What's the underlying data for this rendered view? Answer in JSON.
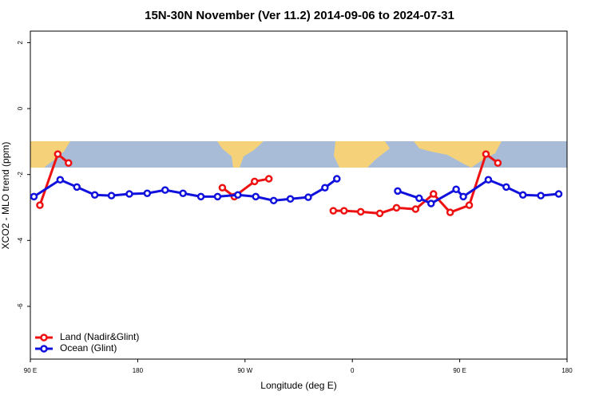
{
  "chart_data": {
    "type": "line",
    "title": "15N-30N November (Ver 11.2)   2014-09-06 to 2024-07-31",
    "x_label": "Longitude (deg E)",
    "y_label": "XCO2 - MLO trend (ppm)",
    "xlim": [
      90,
      540
    ],
    "xticks": [
      {
        "value": 90,
        "label": "90 E"
      },
      {
        "value": 180,
        "label": "180"
      },
      {
        "value": 270,
        "label": "90 W"
      },
      {
        "value": 360,
        "label": "0"
      },
      {
        "value": 450,
        "label": "90 E"
      },
      {
        "value": 540,
        "label": "180"
      }
    ],
    "ylim": [
      -7.6,
      2.35
    ],
    "yticks": [
      2,
      0,
      -2,
      -4,
      -6
    ],
    "legend": "bottom-left",
    "series": [
      {
        "name": "Land (Nadir&Glint)",
        "color": "#ee1111",
        "x": [
          98,
          113,
          122,
          200,
          251,
          261,
          278,
          290,
          320,
          344,
          353,
          367,
          383,
          397,
          413,
          428,
          442,
          458,
          472,
          482
        ],
        "values": [
          -2.93,
          -1.38,
          -1.65,
          null,
          -2.4,
          -2.67,
          -2.21,
          -2.13,
          null,
          -3.1,
          -3.1,
          -3.13,
          -3.18,
          -3.01,
          -3.05,
          -2.59,
          -3.15,
          -2.93,
          -1.38,
          -1.65
        ]
      },
      {
        "name": "Ocean (Glint)",
        "color": "#1111dd",
        "x": [
          93,
          115,
          129,
          144,
          158,
          173,
          188,
          203,
          218,
          233,
          247,
          264,
          279,
          294,
          308,
          323,
          337,
          347,
          370,
          398,
          416,
          426,
          447,
          453,
          474,
          489,
          503,
          518,
          533
        ],
        "values": [
          -2.67,
          -2.16,
          -2.38,
          -2.62,
          -2.64,
          -2.59,
          -2.57,
          -2.47,
          -2.57,
          -2.67,
          -2.67,
          -2.62,
          -2.67,
          -2.79,
          -2.74,
          -2.69,
          -2.4,
          -2.13,
          null,
          -2.5,
          -2.72,
          -2.88,
          -2.45,
          -2.67,
          -2.16,
          -2.38,
          -2.62,
          -2.64,
          -2.59
        ]
      }
    ]
  }
}
